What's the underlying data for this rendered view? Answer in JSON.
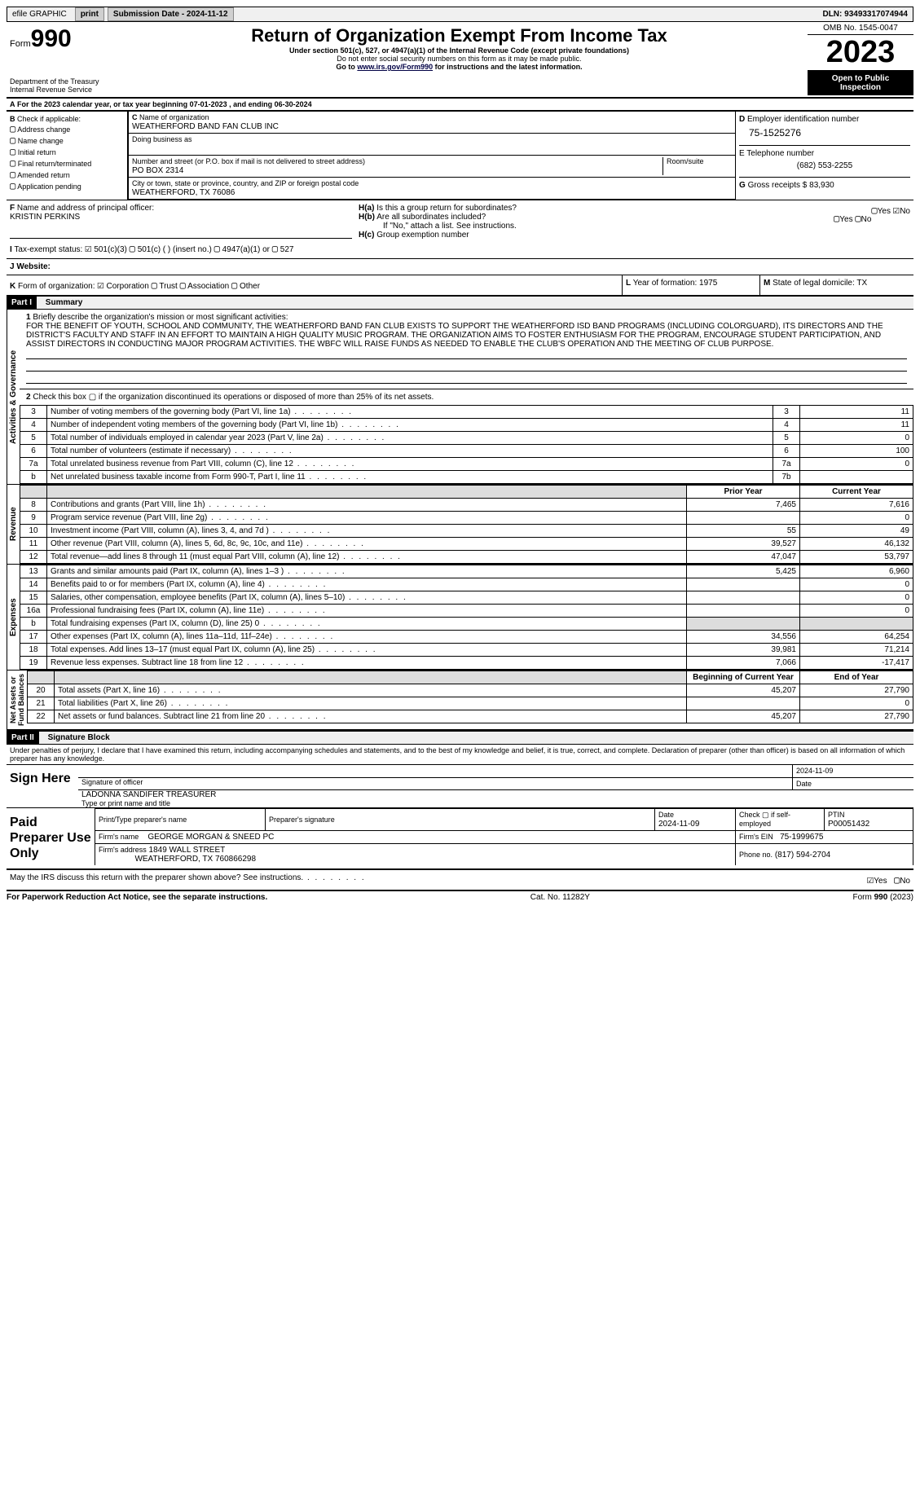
{
  "topbar": {
    "efile": "efile GRAPHIC",
    "print": "print",
    "subdate_label": "Submission Date - ",
    "subdate": "2024-11-12",
    "dln": "DLN: 93493317074944"
  },
  "header": {
    "form": "Form",
    "num": "990",
    "title": "Return of Organization Exempt From Income Tax",
    "sub1": "Under section 501(c), 527, or 4947(a)(1) of the Internal Revenue Code (except private foundations)",
    "sub2": "Do not enter social security numbers on this form as it may be made public.",
    "sub3": "Go to ",
    "link": "www.irs.gov/Form990",
    "sub4": " for instructions and the latest information.",
    "omb": "OMB No. 1545-0047",
    "year": "2023",
    "open": "Open to Public Inspection",
    "dept": "Department of the Treasury\nInternal Revenue Service"
  },
  "lineA": "For the 2023 calendar year, or tax year beginning 07-01-2023   , and ending 06-30-2024",
  "B": {
    "label": "Check if applicable:",
    "opts": [
      "Address change",
      "Name change",
      "Initial return",
      "Final return/terminated",
      "Amended return",
      "Application pending"
    ]
  },
  "C": {
    "name_lbl": "Name of organization",
    "name": "WEATHERFORD BAND FAN CLUB INC",
    "dba_lbl": "Doing business as",
    "street_lbl": "Number and street (or P.O. box if mail is not delivered to street address)",
    "room_lbl": "Room/suite",
    "street": "PO BOX 2314",
    "city_lbl": "City or town, state or province, country, and ZIP or foreign postal code",
    "city": "WEATHERFORD, TX  76086"
  },
  "D": {
    "lbl": "Employer identification number",
    "val": "75-1525276"
  },
  "E": {
    "lbl": "E Telephone number",
    "val": "(682) 553-2255"
  },
  "G": {
    "lbl": "Gross receipts $",
    "val": "83,930"
  },
  "F": {
    "lbl": "Name and address of principal officer:",
    "name": "KRISTIN PERKINS"
  },
  "H": {
    "a": "Is this a group return for subordinates?",
    "b": "Are all subordinates included?",
    "note": "If \"No,\" attach a list. See instructions.",
    "c": "Group exemption number"
  },
  "yes": "Yes",
  "no": "No",
  "I": {
    "lbl": "Tax-exempt status:",
    "o1": "501(c)(3)",
    "o2": "501(c) (  ) (insert no.)",
    "o3": "4947(a)(1) or",
    "o4": "527"
  },
  "J": "Website:",
  "K": {
    "lbl": "Form of organization:",
    "o1": "Corporation",
    "o2": "Trust",
    "o3": "Association",
    "o4": "Other"
  },
  "L": "Year of formation: 1975",
  "M": "State of legal domicile: TX",
  "part1": {
    "hdr": "Part I",
    "title": "Summary"
  },
  "mission": {
    "lbl": "Briefly describe the organization's mission or most significant activities:",
    "text": "FOR THE BENEFIT OF YOUTH, SCHOOL AND COMMUNITY, THE WEATHERFORD BAND FAN CLUB EXISTS TO SUPPORT THE WEATHERFORD ISD BAND PROGRAMS (INCLUDING COLORGUARD), ITS DIRECTORS AND THE DISTRICT'S FACULTY AND STAFF IN AN EFFORT TO MAINTAIN A HIGH QUALITY MUSIC PROGRAM. THE ORGANIZATION AIMS TO FOSTER ENTHUSIASM FOR THE PROGRAM, ENCOURAGE STUDENT PARTICIPATION, AND ASSIST DIRECTORS IN CONDUCTING MAJOR PROGRAM ACTIVITIES. THE WBFC WILL RAISE FUNDS AS NEEDED TO ENABLE THE CLUB'S OPERATION AND THE MEETING OF CLUB PURPOSE."
  },
  "gov": {
    "l2": "Check this box ▢ if the organization discontinued its operations or disposed of more than 25% of its net assets.",
    "rows": [
      {
        "n": "3",
        "t": "Number of voting members of the governing body (Part VI, line 1a)",
        "c": "3",
        "v": "11"
      },
      {
        "n": "4",
        "t": "Number of independent voting members of the governing body (Part VI, line 1b)",
        "c": "4",
        "v": "11"
      },
      {
        "n": "5",
        "t": "Total number of individuals employed in calendar year 2023 (Part V, line 2a)",
        "c": "5",
        "v": "0"
      },
      {
        "n": "6",
        "t": "Total number of volunteers (estimate if necessary)",
        "c": "6",
        "v": "100"
      },
      {
        "n": "7a",
        "t": "Total unrelated business revenue from Part VIII, column (C), line 12",
        "c": "7a",
        "v": "0"
      },
      {
        "n": "b",
        "t": "Net unrelated business taxable income from Form 990-T, Part I, line 11",
        "c": "7b",
        "v": ""
      }
    ]
  },
  "col_hdr": {
    "prior": "Prior Year",
    "current": "Current Year",
    "begin": "Beginning of Current Year",
    "end": "End of Year"
  },
  "revenue": [
    {
      "n": "8",
      "t": "Contributions and grants (Part VIII, line 1h)",
      "p": "7,465",
      "c": "7,616"
    },
    {
      "n": "9",
      "t": "Program service revenue (Part VIII, line 2g)",
      "p": "",
      "c": "0"
    },
    {
      "n": "10",
      "t": "Investment income (Part VIII, column (A), lines 3, 4, and 7d )",
      "p": "55",
      "c": "49"
    },
    {
      "n": "11",
      "t": "Other revenue (Part VIII, column (A), lines 5, 6d, 8c, 9c, 10c, and 11e)",
      "p": "39,527",
      "c": "46,132"
    },
    {
      "n": "12",
      "t": "Total revenue—add lines 8 through 11 (must equal Part VIII, column (A), line 12)",
      "p": "47,047",
      "c": "53,797"
    }
  ],
  "expenses": [
    {
      "n": "13",
      "t": "Grants and similar amounts paid (Part IX, column (A), lines 1–3 )",
      "p": "5,425",
      "c": "6,960"
    },
    {
      "n": "14",
      "t": "Benefits paid to or for members (Part IX, column (A), line 4)",
      "p": "",
      "c": "0"
    },
    {
      "n": "15",
      "t": "Salaries, other compensation, employee benefits (Part IX, column (A), lines 5–10)",
      "p": "",
      "c": "0"
    },
    {
      "n": "16a",
      "t": "Professional fundraising fees (Part IX, column (A), line 11e)",
      "p": "",
      "c": "0"
    },
    {
      "n": "b",
      "t": "Total fundraising expenses (Part IX, column (D), line 25) 0",
      "p": "gray",
      "c": "gray"
    },
    {
      "n": "17",
      "t": "Other expenses (Part IX, column (A), lines 11a–11d, 11f–24e)",
      "p": "34,556",
      "c": "64,254"
    },
    {
      "n": "18",
      "t": "Total expenses. Add lines 13–17 (must equal Part IX, column (A), line 25)",
      "p": "39,981",
      "c": "71,214"
    },
    {
      "n": "19",
      "t": "Revenue less expenses. Subtract line 18 from line 12",
      "p": "7,066",
      "c": "-17,417"
    }
  ],
  "netassets": [
    {
      "n": "20",
      "t": "Total assets (Part X, line 16)",
      "p": "45,207",
      "c": "27,790"
    },
    {
      "n": "21",
      "t": "Total liabilities (Part X, line 26)",
      "p": "",
      "c": "0"
    },
    {
      "n": "22",
      "t": "Net assets or fund balances. Subtract line 21 from line 20",
      "p": "45,207",
      "c": "27,790"
    }
  ],
  "labels": {
    "gov": "Activities & Governance",
    "rev": "Revenue",
    "exp": "Expenses",
    "net": "Net Assets or\nFund Balances"
  },
  "part2": {
    "hdr": "Part II",
    "title": "Signature Block"
  },
  "sig": {
    "penalties": "Under penalties of perjury, I declare that I have examined this return, including accompanying schedules and statements, and to the best of my knowledge and belief, it is true, correct, and complete. Declaration of preparer (other than officer) is based on all information of which preparer has any knowledge.",
    "sign_here": "Sign Here",
    "date1": "2024-11-09",
    "sig_lbl": "Signature of officer",
    "date_lbl": "Date",
    "officer": "LADONNA SANDIFER TREASURER",
    "type_lbl": "Type or print name and title",
    "paid": "Paid Preparer Use Only",
    "prep_name_lbl": "Print/Type preparer's name",
    "prep_sig_lbl": "Preparer's signature",
    "date2": "2024-11-09",
    "check_lbl": "Check ▢ if self-employed",
    "ptin_lbl": "PTIN",
    "ptin": "P00051432",
    "firm_name_lbl": "Firm's name",
    "firm_name": "GEORGE MORGAN & SNEED PC",
    "firm_ein_lbl": "Firm's EIN",
    "firm_ein": "75-1999675",
    "firm_addr_lbl": "Firm's address",
    "firm_addr1": "1849 WALL STREET",
    "firm_addr2": "WEATHERFORD, TX  760866298",
    "phone_lbl": "Phone no.",
    "phone": "(817) 594-2704",
    "discuss": "May the IRS discuss this return with the preparer shown above? See instructions."
  },
  "footer": {
    "pra": "For Paperwork Reduction Act Notice, see the separate instructions.",
    "cat": "Cat. No. 11282Y",
    "form": "Form 990 (2023)"
  }
}
